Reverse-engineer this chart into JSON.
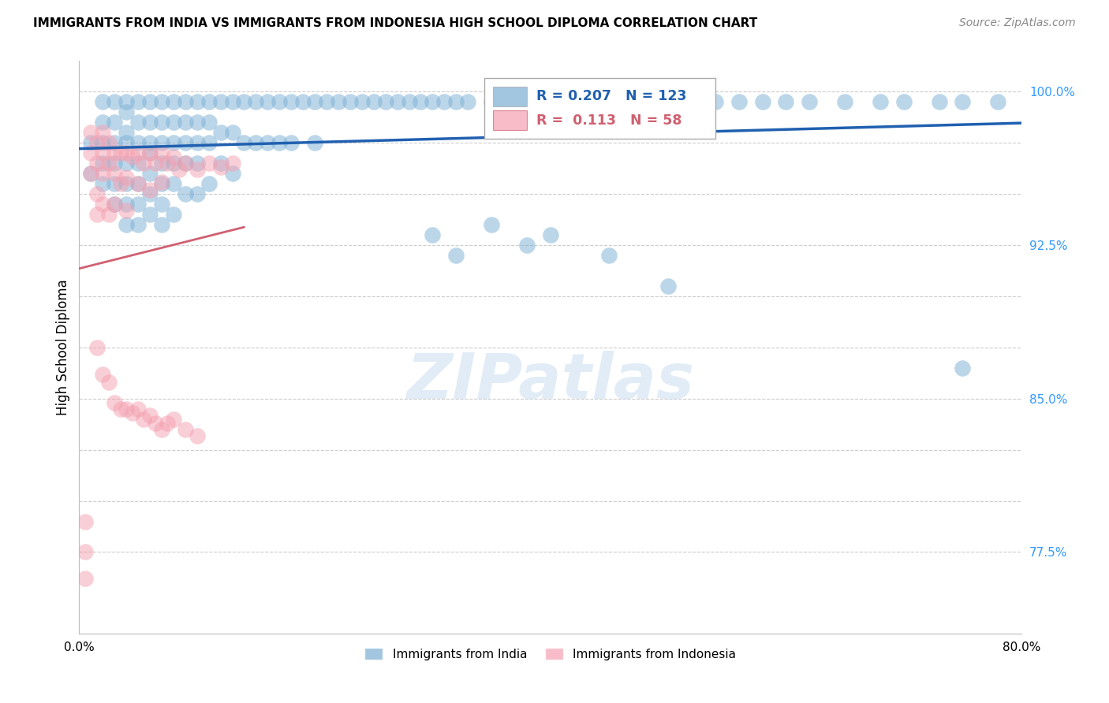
{
  "title": "IMMIGRANTS FROM INDIA VS IMMIGRANTS FROM INDONESIA HIGH SCHOOL DIPLOMA CORRELATION CHART",
  "source": "Source: ZipAtlas.com",
  "ylabel": "High School Diploma",
  "xlim": [
    0.0,
    0.8
  ],
  "ylim": [
    0.735,
    1.015
  ],
  "yticks": [
    0.775,
    0.8,
    0.825,
    0.85,
    0.875,
    0.9,
    0.925,
    0.95,
    0.975,
    1.0
  ],
  "ytick_labels": [
    "77.5%",
    "",
    "",
    "85.0%",
    "",
    "",
    "92.5%",
    "",
    "",
    "100.0%"
  ],
  "xticks": [
    0.0,
    0.1,
    0.2,
    0.3,
    0.4,
    0.5,
    0.6,
    0.7,
    0.8
  ],
  "xtick_labels": [
    "0.0%",
    "",
    "",
    "",
    "",
    "",
    "",
    "",
    "80.0%"
  ],
  "india_color": "#7bafd4",
  "indonesia_color": "#f4a0b0",
  "india_line_color": "#2060b0",
  "indonesia_line_color": "#d06070",
  "india_R": 0.207,
  "india_N": 123,
  "indonesia_R": 0.113,
  "indonesia_N": 58,
  "watermark": "ZIPatlas",
  "india_x": [
    0.01,
    0.01,
    0.02,
    0.02,
    0.02,
    0.02,
    0.02,
    0.03,
    0.03,
    0.03,
    0.03,
    0.03,
    0.03,
    0.04,
    0.04,
    0.04,
    0.04,
    0.04,
    0.04,
    0.04,
    0.04,
    0.05,
    0.05,
    0.05,
    0.05,
    0.05,
    0.05,
    0.05,
    0.06,
    0.06,
    0.06,
    0.06,
    0.06,
    0.06,
    0.06,
    0.07,
    0.07,
    0.07,
    0.07,
    0.07,
    0.07,
    0.07,
    0.08,
    0.08,
    0.08,
    0.08,
    0.08,
    0.08,
    0.09,
    0.09,
    0.09,
    0.09,
    0.09,
    0.1,
    0.1,
    0.1,
    0.1,
    0.1,
    0.11,
    0.11,
    0.11,
    0.11,
    0.12,
    0.12,
    0.12,
    0.13,
    0.13,
    0.13,
    0.14,
    0.14,
    0.15,
    0.15,
    0.16,
    0.16,
    0.17,
    0.17,
    0.18,
    0.18,
    0.19,
    0.2,
    0.2,
    0.21,
    0.22,
    0.23,
    0.24,
    0.25,
    0.26,
    0.27,
    0.28,
    0.29,
    0.3,
    0.31,
    0.32,
    0.33,
    0.35,
    0.36,
    0.38,
    0.4,
    0.42,
    0.44,
    0.46,
    0.48,
    0.5,
    0.52,
    0.54,
    0.56,
    0.58,
    0.6,
    0.62,
    0.65,
    0.68,
    0.7,
    0.73,
    0.75,
    0.78,
    0.3,
    0.32,
    0.35,
    0.38,
    0.4,
    0.45,
    0.5,
    0.75
  ],
  "india_y": [
    0.975,
    0.96,
    0.995,
    0.985,
    0.975,
    0.965,
    0.955,
    0.995,
    0.985,
    0.975,
    0.965,
    0.955,
    0.945,
    0.995,
    0.99,
    0.98,
    0.975,
    0.965,
    0.955,
    0.945,
    0.935,
    0.995,
    0.985,
    0.975,
    0.965,
    0.955,
    0.945,
    0.935,
    0.995,
    0.985,
    0.975,
    0.97,
    0.96,
    0.95,
    0.94,
    0.995,
    0.985,
    0.975,
    0.965,
    0.955,
    0.945,
    0.935,
    0.995,
    0.985,
    0.975,
    0.965,
    0.955,
    0.94,
    0.995,
    0.985,
    0.975,
    0.965,
    0.95,
    0.995,
    0.985,
    0.975,
    0.965,
    0.95,
    0.995,
    0.985,
    0.975,
    0.955,
    0.995,
    0.98,
    0.965,
    0.995,
    0.98,
    0.96,
    0.995,
    0.975,
    0.995,
    0.975,
    0.995,
    0.975,
    0.995,
    0.975,
    0.995,
    0.975,
    0.995,
    0.995,
    0.975,
    0.995,
    0.995,
    0.995,
    0.995,
    0.995,
    0.995,
    0.995,
    0.995,
    0.995,
    0.995,
    0.995,
    0.995,
    0.995,
    0.995,
    0.995,
    0.995,
    0.995,
    0.995,
    0.995,
    0.995,
    0.995,
    0.995,
    0.995,
    0.995,
    0.995,
    0.995,
    0.995,
    0.995,
    0.995,
    0.995,
    0.995,
    0.995,
    0.995,
    0.995,
    0.93,
    0.92,
    0.935,
    0.925,
    0.93,
    0.92,
    0.905,
    0.865
  ],
  "indonesia_x": [
    0.005,
    0.005,
    0.01,
    0.01,
    0.01,
    0.015,
    0.015,
    0.015,
    0.015,
    0.02,
    0.02,
    0.02,
    0.02,
    0.025,
    0.025,
    0.025,
    0.03,
    0.03,
    0.03,
    0.035,
    0.035,
    0.04,
    0.04,
    0.04,
    0.045,
    0.05,
    0.05,
    0.055,
    0.06,
    0.06,
    0.065,
    0.07,
    0.07,
    0.075,
    0.08,
    0.085,
    0.09,
    0.1,
    0.11,
    0.12,
    0.13,
    0.015,
    0.02,
    0.025,
    0.03,
    0.035,
    0.04,
    0.045,
    0.05,
    0.055,
    0.06,
    0.065,
    0.07,
    0.075,
    0.08,
    0.09,
    0.1,
    0.005
  ],
  "indonesia_y": [
    0.775,
    0.762,
    0.98,
    0.97,
    0.96,
    0.975,
    0.965,
    0.95,
    0.94,
    0.98,
    0.97,
    0.96,
    0.945,
    0.975,
    0.965,
    0.94,
    0.97,
    0.96,
    0.945,
    0.97,
    0.955,
    0.97,
    0.958,
    0.942,
    0.968,
    0.97,
    0.955,
    0.965,
    0.97,
    0.952,
    0.965,
    0.97,
    0.956,
    0.965,
    0.968,
    0.962,
    0.965,
    0.962,
    0.965,
    0.963,
    0.965,
    0.875,
    0.862,
    0.858,
    0.848,
    0.845,
    0.845,
    0.843,
    0.845,
    0.84,
    0.842,
    0.838,
    0.835,
    0.838,
    0.84,
    0.835,
    0.832,
    0.79
  ]
}
